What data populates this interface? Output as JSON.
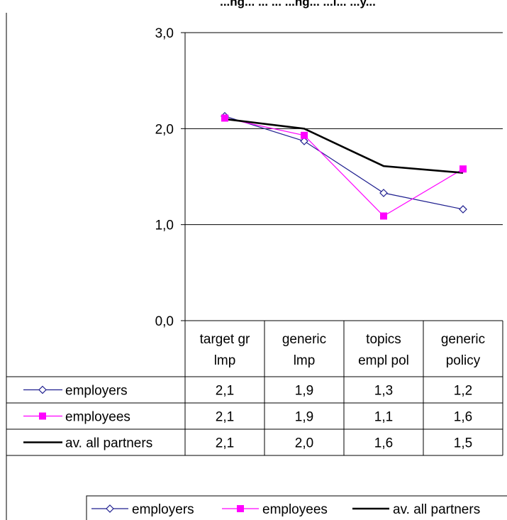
{
  "chart_data": {
    "type": "line",
    "title": "...ng... ... ... ...ng... ...l... ...y...",
    "categories": [
      [
        "target gr",
        "lmp"
      ],
      [
        "generic",
        "lmp"
      ],
      [
        "topics",
        "empl pol"
      ],
      [
        "generic",
        "policy"
      ]
    ],
    "ylim": [
      0,
      3
    ],
    "yticks": [
      "0,0",
      "1,0",
      "2,0",
      "3,0"
    ],
    "grid": true,
    "legend_position": "bottom",
    "series": [
      {
        "name": "employers",
        "values": [
          2.13,
          1.87,
          1.33,
          1.16
        ],
        "labels": [
          "2,1",
          "1,9",
          "1,3",
          "1,2"
        ],
        "color": "#1f1f8f",
        "marker": "diamond-open"
      },
      {
        "name": "employees",
        "values": [
          2.11,
          1.93,
          1.09,
          1.58
        ],
        "labels": [
          "2,1",
          "1,9",
          "1,1",
          "1,6"
        ],
        "color": "#ff00ff",
        "marker": "square-filled"
      },
      {
        "name": "av. all partners",
        "values": [
          2.1,
          2.0,
          1.61,
          1.54
        ],
        "labels": [
          "2,1",
          "2,0",
          "1,6",
          "1,5"
        ],
        "color": "#000000",
        "marker": "none"
      }
    ]
  }
}
